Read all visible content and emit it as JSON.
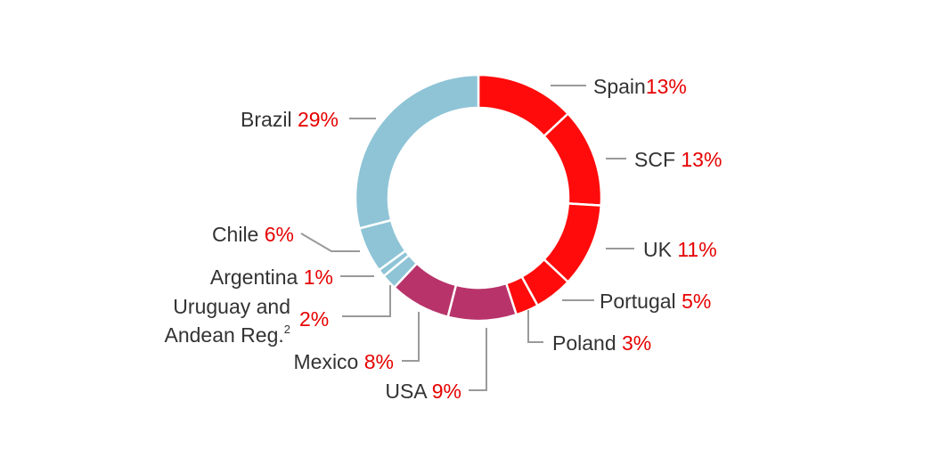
{
  "chart_data": {
    "type": "pie",
    "subtype": "donut",
    "slices": [
      {
        "label": "Spain",
        "value": 13,
        "value_label": "13%",
        "color": "#ff0b0b"
      },
      {
        "label": "SCF",
        "value": 13,
        "value_label": "13%",
        "color": "#ff0b0b"
      },
      {
        "label": "UK",
        "value": 11,
        "value_label": "11%",
        "color": "#ff0b0b"
      },
      {
        "label": "Portugal",
        "value": 5,
        "value_label": "5%",
        "color": "#ff0b0b"
      },
      {
        "label": "Poland",
        "value": 3,
        "value_label": "3%",
        "color": "#ff0b0b"
      },
      {
        "label": "USA",
        "value": 9,
        "value_label": "9%",
        "color": "#b8336a"
      },
      {
        "label": "Mexico",
        "value": 8,
        "value_label": "8%",
        "color": "#b8336a"
      },
      {
        "label": "Uruguay and Andean Reg.",
        "label_line1": "Uruguay and",
        "label_line2": "Andean Reg.",
        "footnote": "2",
        "value": 2,
        "value_label": "2%",
        "color": "#8ec4d6"
      },
      {
        "label": "Argentina",
        "value": 1,
        "value_label": "1%",
        "color": "#8ec4d6"
      },
      {
        "label": "Chile",
        "value": 6,
        "value_label": "6%",
        "color": "#8ec4d6"
      },
      {
        "label": "Brazil",
        "value": 29,
        "value_label": "29%",
        "color": "#8ec4d6"
      }
    ],
    "colors": {
      "label_text": "#333333",
      "percent_text": "#e60000",
      "leader_line": "#9a9a9a",
      "separator": "#ffffff"
    }
  }
}
